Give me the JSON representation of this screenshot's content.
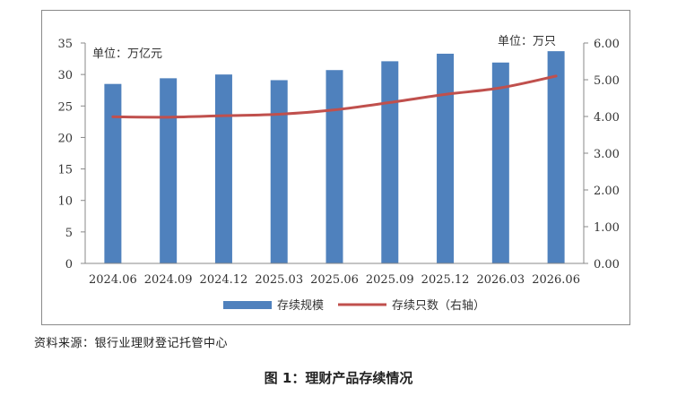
{
  "chart_data": {
    "type": "bar",
    "categories": [
      "2024.06",
      "2024.09",
      "2024.12",
      "2025.03",
      "2025.06",
      "2025.09",
      "2025.12",
      "2026.03",
      "2026.06"
    ],
    "series": [
      {
        "name": "存续规模",
        "type": "bar",
        "axis": "left",
        "color": "#4f81bd",
        "values": [
          28.5,
          29.4,
          30.0,
          29.1,
          30.7,
          32.1,
          33.3,
          31.9,
          33.7
        ]
      },
      {
        "name": "存续只数（右轴）",
        "type": "line",
        "axis": "right",
        "color": "#c0504d",
        "values": [
          3.99,
          3.98,
          4.02,
          4.06,
          4.18,
          4.38,
          4.6,
          4.78,
          5.1
        ]
      }
    ],
    "left_axis": {
      "unit_label": "单位：万亿元",
      "min": 0,
      "max": 35,
      "ticks": [
        "0",
        "5",
        "10",
        "15",
        "20",
        "25",
        "30",
        "35"
      ]
    },
    "right_axis": {
      "unit_label": "单位：万只",
      "min": 0,
      "max": 6,
      "ticks": [
        "0.00",
        "1.00",
        "2.00",
        "3.00",
        "4.00",
        "5.00",
        "6.00"
      ]
    },
    "grid": false,
    "legend": "bottom"
  },
  "source": "资料来源：银行业理财登记托管中心",
  "caption": "图 1：理财产品存续情况"
}
